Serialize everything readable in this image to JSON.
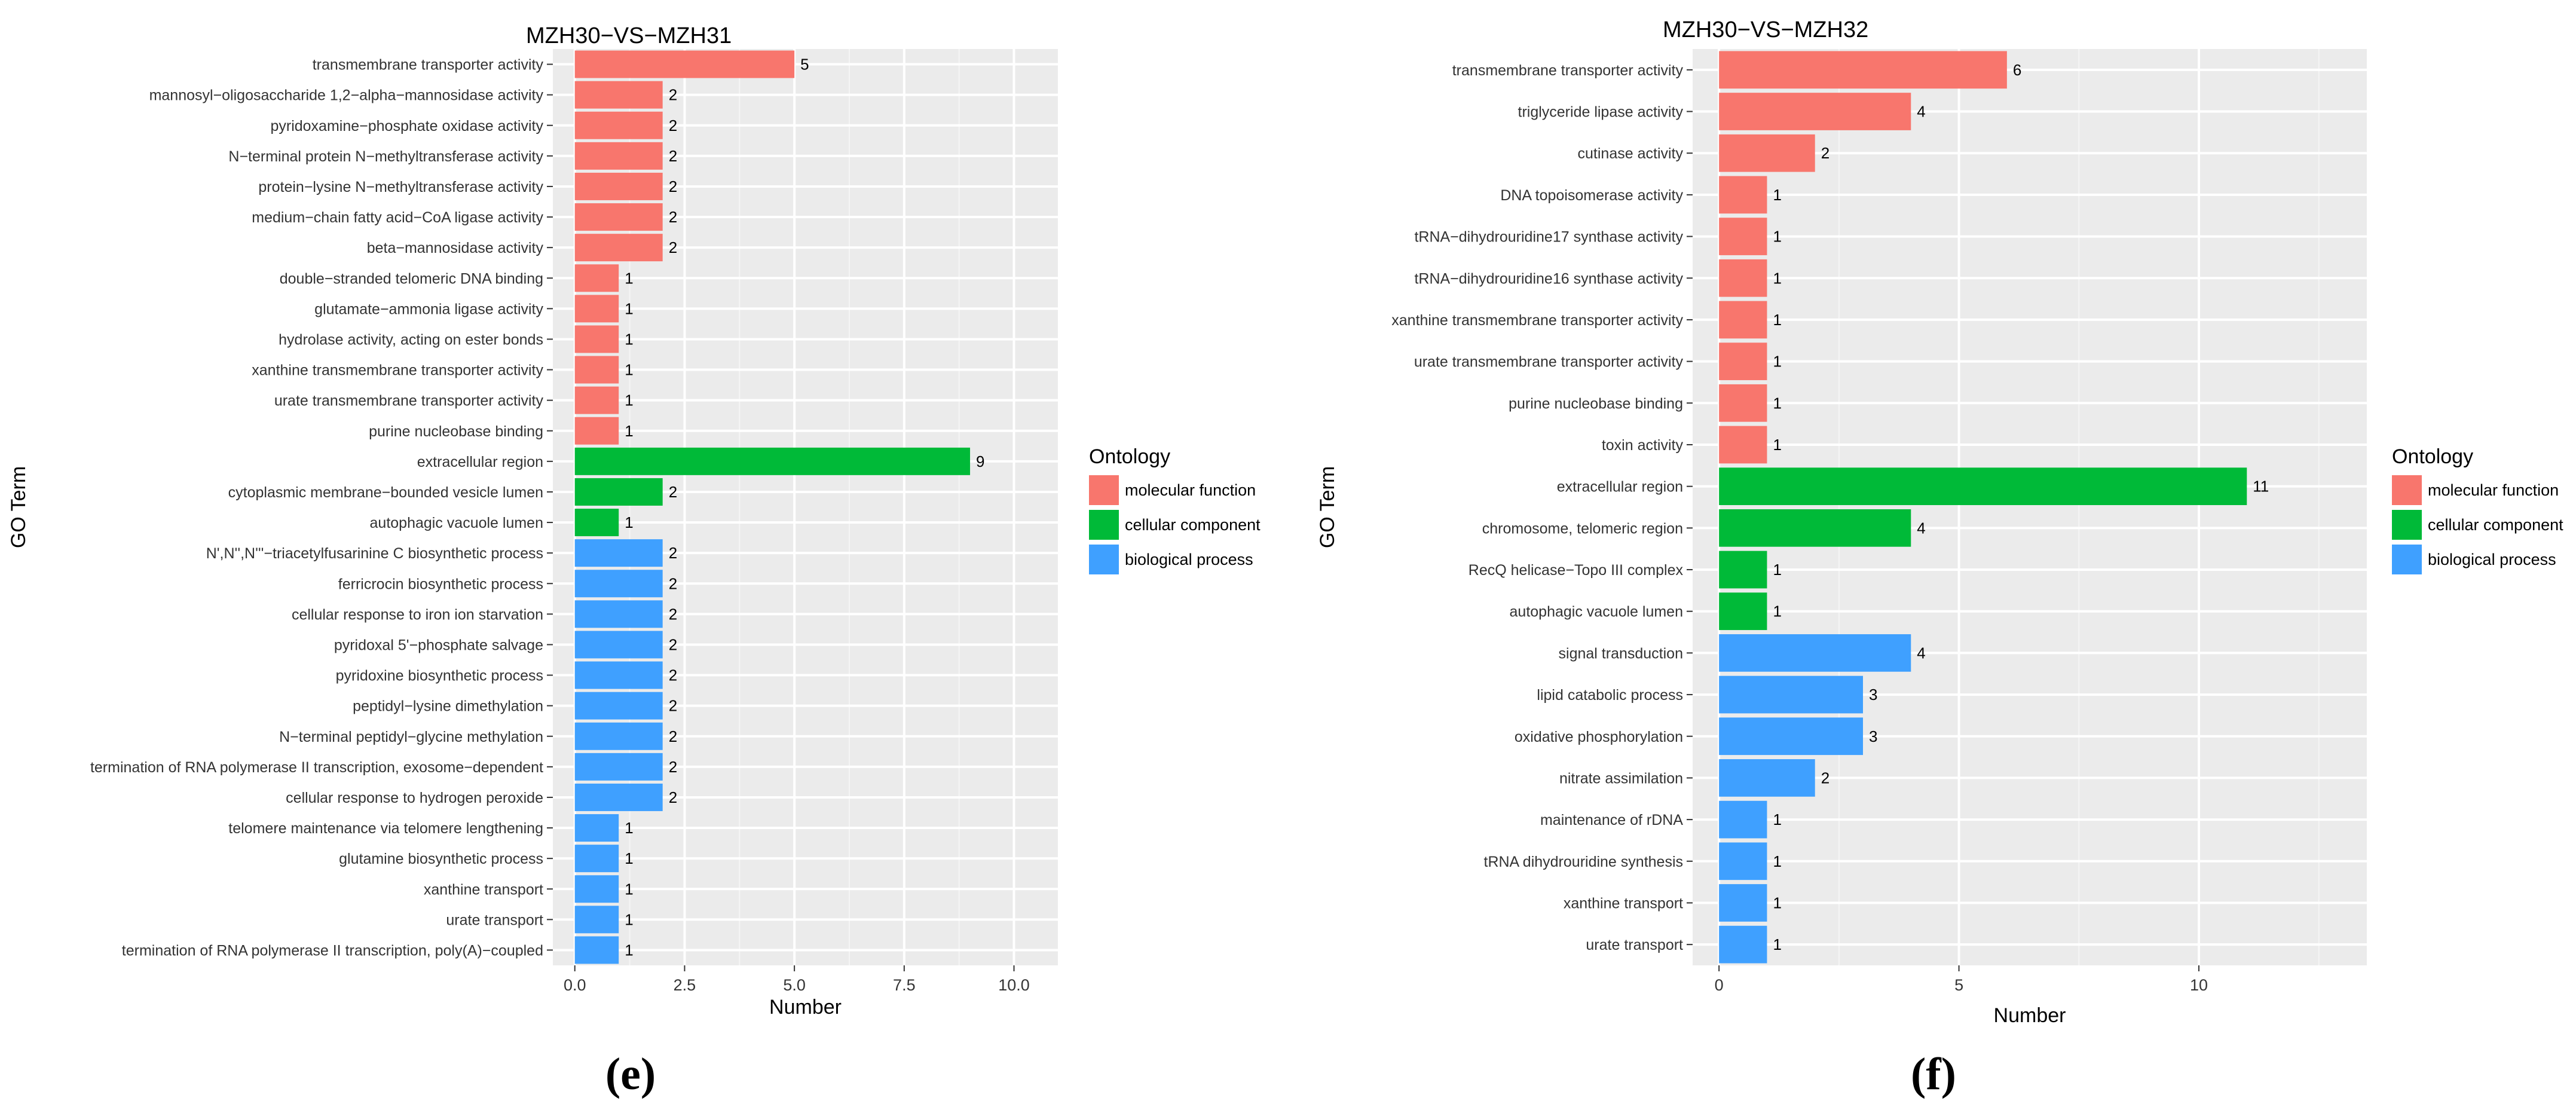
{
  "colors": {
    "molecular function": "#F8766D",
    "cellular component": "#00BA38",
    "biological process": "#3FA0FF",
    "panel_bg": "#EBEBEB",
    "grid_major": "#FFFFFF",
    "text": "#333333"
  },
  "legend": {
    "title": "Ontology",
    "entries": [
      "molecular function",
      "cellular component",
      "biological process"
    ]
  },
  "chart_data": [
    {
      "type": "bar",
      "orientation": "horizontal",
      "title": "MZH30−VS−MZH31",
      "xlabel": "Number",
      "ylabel": "GO Term",
      "xlim": [
        -0.5,
        11
      ],
      "xticks": [
        0,
        2.5,
        5,
        7.5,
        10
      ],
      "xtick_labels": [
        "0.0",
        "2.5",
        "5.0",
        "7.5",
        "10.0"
      ],
      "panel_label": "(e)",
      "legend_position": "right",
      "categories": [
        "transmembrane transporter activity",
        "mannosyl−oligosaccharide 1,2−alpha−mannosidase activity",
        "pyridoxamine−phosphate oxidase activity",
        "N−terminal protein N−methyltransferase activity",
        "protein−lysine N−methyltransferase activity",
        "medium−chain fatty acid−CoA ligase activity",
        "beta−mannosidase activity",
        "double−stranded telomeric DNA binding",
        "glutamate−ammonia ligase activity",
        "hydrolase activity, acting on ester bonds",
        "xanthine transmembrane transporter activity",
        "urate transmembrane transporter activity",
        "purine nucleobase binding",
        "extracellular region",
        "cytoplasmic membrane−bounded vesicle lumen",
        "autophagic vacuole lumen",
        "N',N'',N'''−triacetylfusarinine C biosynthetic process",
        "ferricrocin biosynthetic process",
        "cellular response to iron ion starvation",
        "pyridoxal 5'−phosphate salvage",
        "pyridoxine biosynthetic process",
        "peptidyl−lysine dimethylation",
        "N−terminal peptidyl−glycine methylation",
        "termination of RNA polymerase II transcription, exosome−dependent",
        "cellular response to hydrogen peroxide",
        "telomere maintenance via telomere lengthening",
        "glutamine biosynthetic process",
        "xanthine transport",
        "urate transport",
        "termination of RNA polymerase II transcription, poly(A)−coupled"
      ],
      "values": [
        5,
        2,
        2,
        2,
        2,
        2,
        2,
        1,
        1,
        1,
        1,
        1,
        1,
        9,
        2,
        1,
        2,
        2,
        2,
        2,
        2,
        2,
        2,
        2,
        2,
        1,
        1,
        1,
        1,
        1
      ],
      "ontology": [
        "molecular function",
        "molecular function",
        "molecular function",
        "molecular function",
        "molecular function",
        "molecular function",
        "molecular function",
        "molecular function",
        "molecular function",
        "molecular function",
        "molecular function",
        "molecular function",
        "molecular function",
        "cellular component",
        "cellular component",
        "cellular component",
        "biological process",
        "biological process",
        "biological process",
        "biological process",
        "biological process",
        "biological process",
        "biological process",
        "biological process",
        "biological process",
        "biological process",
        "biological process",
        "biological process",
        "biological process",
        "biological process"
      ]
    },
    {
      "type": "bar",
      "orientation": "horizontal",
      "title": "MZH30−VS−MZH32",
      "xlabel": "Number",
      "ylabel": "GO Term",
      "xlim": [
        -0.55,
        13.5
      ],
      "xticks": [
        0,
        5,
        10
      ],
      "xtick_labels": [
        "0",
        "5",
        "10"
      ],
      "panel_label": "(f)",
      "legend_position": "right",
      "categories": [
        "transmembrane transporter activity",
        "triglyceride lipase activity",
        "cutinase activity",
        "DNA topoisomerase activity",
        "tRNA−dihydrouridine17 synthase activity",
        "tRNA−dihydrouridine16 synthase activity",
        "xanthine transmembrane transporter activity",
        "urate transmembrane transporter activity",
        "purine nucleobase binding",
        "toxin activity",
        "extracellular region",
        "chromosome, telomeric region",
        "RecQ helicase−Topo III complex",
        "autophagic vacuole lumen",
        "signal transduction",
        "lipid catabolic process",
        "oxidative phosphorylation",
        "nitrate assimilation",
        "maintenance of rDNA",
        "tRNA dihydrouridine synthesis",
        "xanthine transport",
        "urate transport"
      ],
      "values": [
        6,
        4,
        2,
        1,
        1,
        1,
        1,
        1,
        1,
        1,
        11,
        4,
        1,
        1,
        4,
        3,
        3,
        2,
        1,
        1,
        1,
        1
      ],
      "ontology": [
        "molecular function",
        "molecular function",
        "molecular function",
        "molecular function",
        "molecular function",
        "molecular function",
        "molecular function",
        "molecular function",
        "molecular function",
        "molecular function",
        "cellular component",
        "cellular component",
        "cellular component",
        "cellular component",
        "biological process",
        "biological process",
        "biological process",
        "biological process",
        "biological process",
        "biological process",
        "biological process",
        "biological process"
      ]
    }
  ]
}
